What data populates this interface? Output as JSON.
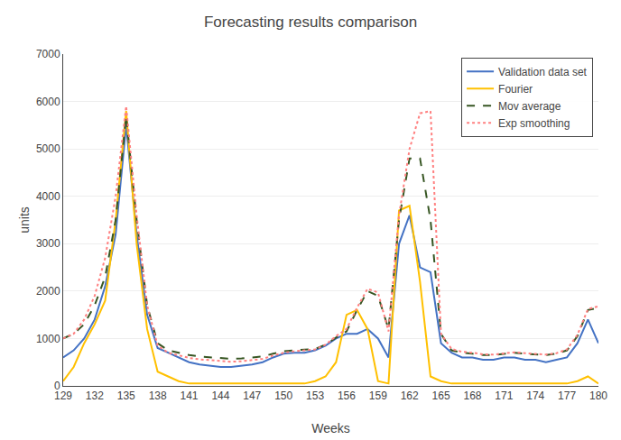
{
  "chart_data": {
    "type": "line",
    "title": "Forecasting results comparison",
    "x_label": "Weeks",
    "y_label": "units",
    "x": [
      129,
      130,
      131,
      132,
      133,
      134,
      135,
      136,
      137,
      138,
      139,
      140,
      141,
      142,
      143,
      144,
      145,
      146,
      147,
      148,
      149,
      150,
      151,
      152,
      153,
      154,
      155,
      156,
      157,
      158,
      159,
      160,
      161,
      162,
      163,
      164,
      165,
      166,
      167,
      168,
      169,
      170,
      171,
      172,
      173,
      174,
      175,
      176,
      177,
      178,
      179,
      180
    ],
    "series": [
      {
        "name": "Validation data set",
        "color": "#4472C4",
        "line_style": "solid",
        "values": [
          600,
          750,
          1000,
          1400,
          2100,
          3200,
          5500,
          3200,
          1500,
          800,
          700,
          600,
          500,
          450,
          420,
          400,
          400,
          420,
          450,
          500,
          600,
          680,
          700,
          700,
          750,
          850,
          1000,
          1100,
          1100,
          1200,
          1000,
          600,
          3000,
          3600,
          2500,
          2400,
          900,
          700,
          600,
          600,
          550,
          550,
          600,
          600,
          550,
          550,
          500,
          550,
          600,
          900,
          1400,
          900
        ]
      },
      {
        "name": "Fourier",
        "color": "#FFC000",
        "line_style": "solid",
        "values": [
          100,
          400,
          900,
          1300,
          1800,
          3500,
          5800,
          3000,
          1200,
          300,
          200,
          100,
          50,
          50,
          50,
          50,
          50,
          50,
          50,
          50,
          50,
          50,
          50,
          50,
          100,
          200,
          500,
          1500,
          1600,
          1200,
          100,
          50,
          3700,
          3800,
          2200,
          200,
          100,
          50,
          50,
          50,
          50,
          50,
          50,
          50,
          50,
          50,
          50,
          50,
          50,
          100,
          200,
          50
        ]
      },
      {
        "name": "Mov average",
        "color": "#375623",
        "line_style": "dashed",
        "values": [
          1000,
          1100,
          1300,
          1700,
          2300,
          3500,
          5700,
          3500,
          1700,
          900,
          750,
          700,
          650,
          620,
          600,
          580,
          570,
          580,
          600,
          620,
          680,
          730,
          750,
          760,
          780,
          870,
          1020,
          1150,
          1600,
          2000,
          1900,
          1200,
          3500,
          4800,
          4800,
          3500,
          1100,
          750,
          700,
          680,
          650,
          650,
          680,
          700,
          680,
          660,
          650,
          680,
          750,
          1050,
          1600,
          1650
        ]
      },
      {
        "name": "Exp smoothing",
        "color": "#FF8080",
        "line_style": "dotted",
        "values": [
          1000,
          1100,
          1400,
          1900,
          2700,
          4000,
          5900,
          3600,
          1700,
          850,
          700,
          640,
          590,
          560,
          540,
          520,
          510,
          520,
          545,
          570,
          640,
          700,
          730,
          745,
          770,
          870,
          1050,
          1200,
          1650,
          2050,
          1970,
          1150,
          3600,
          5000,
          5750,
          5800,
          1100,
          780,
          720,
          700,
          665,
          660,
          690,
          710,
          690,
          670,
          660,
          690,
          770,
          1080,
          1620,
          1680
        ]
      }
    ],
    "xlim": [
      129,
      180
    ],
    "ylim": [
      0,
      7000
    ],
    "xticks": [
      129,
      132,
      135,
      138,
      141,
      144,
      147,
      150,
      153,
      156,
      159,
      162,
      165,
      168,
      171,
      174,
      177,
      180
    ],
    "yticks": [
      0,
      1000,
      2000,
      3000,
      4000,
      5000,
      6000,
      7000
    ],
    "grid": true,
    "legend": "upper right"
  }
}
